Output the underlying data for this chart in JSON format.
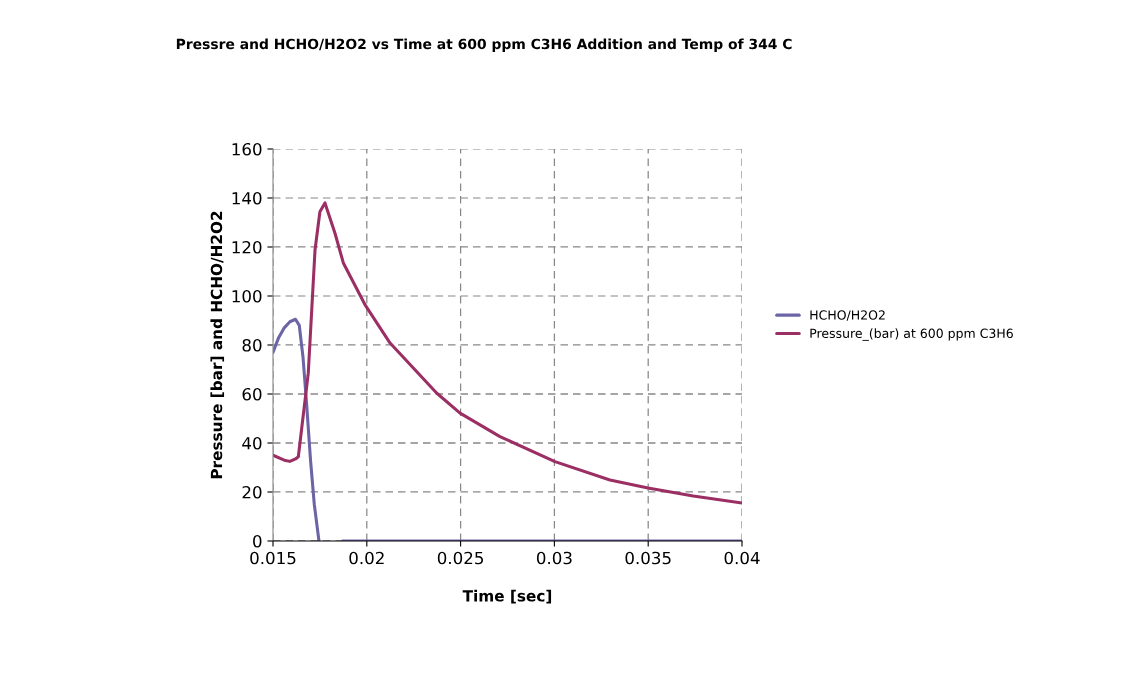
{
  "chart_data": {
    "type": "line",
    "title": "Pressre and HCHO/H2O2 vs Time at 600 ppm C3H6 Addition and Temp of 344 C",
    "xlabel": "Time [sec]",
    "ylabel": "Pressure [bar] and HCHO/H2O2",
    "series": [
      {
        "name": "HCHO/H2O2",
        "color": "#6b65a6",
        "x": [
          0.015,
          0.0153,
          0.0156,
          0.0159,
          0.0162,
          0.0164,
          0.0166,
          0.0168,
          0.017,
          0.0172,
          0.01745,
          0.018,
          0.0187,
          0.04
        ],
        "values": [
          77,
          83,
          87,
          89.5,
          90.5,
          88,
          75,
          55,
          33,
          15,
          0,
          null,
          0,
          0
        ]
      },
      {
        "name": "Pressure_(bar) at 600 ppm C3H6",
        "color": "#9b2f64",
        "x": [
          0.015,
          0.0156,
          0.0159,
          0.0162,
          0.01635,
          0.01688,
          0.01724,
          0.0175,
          0.01777,
          0.0183,
          0.01875,
          0.0199,
          0.02124,
          0.02372,
          0.02497,
          0.0271,
          0.03003,
          0.03296,
          0.03499,
          0.0374,
          0.04
        ],
        "values": [
          35,
          33,
          32.5,
          33.5,
          34.4,
          68.5,
          118.8,
          134.4,
          138,
          125.7,
          113.5,
          96.5,
          80.8,
          60.4,
          52.2,
          42.6,
          32.4,
          24.9,
          21.6,
          18.4,
          15.5
        ]
      }
    ],
    "xlim": [
      0.015,
      0.04
    ],
    "xticks": [
      0.015,
      0.02,
      0.025,
      0.03,
      0.035,
      0.04
    ],
    "ylim": [
      0,
      160
    ],
    "yticks": [
      0,
      20,
      40,
      60,
      80,
      100,
      120,
      140,
      160
    ],
    "grid": true,
    "legend": "right",
    "marker": "none",
    "line_style": "solid"
  }
}
